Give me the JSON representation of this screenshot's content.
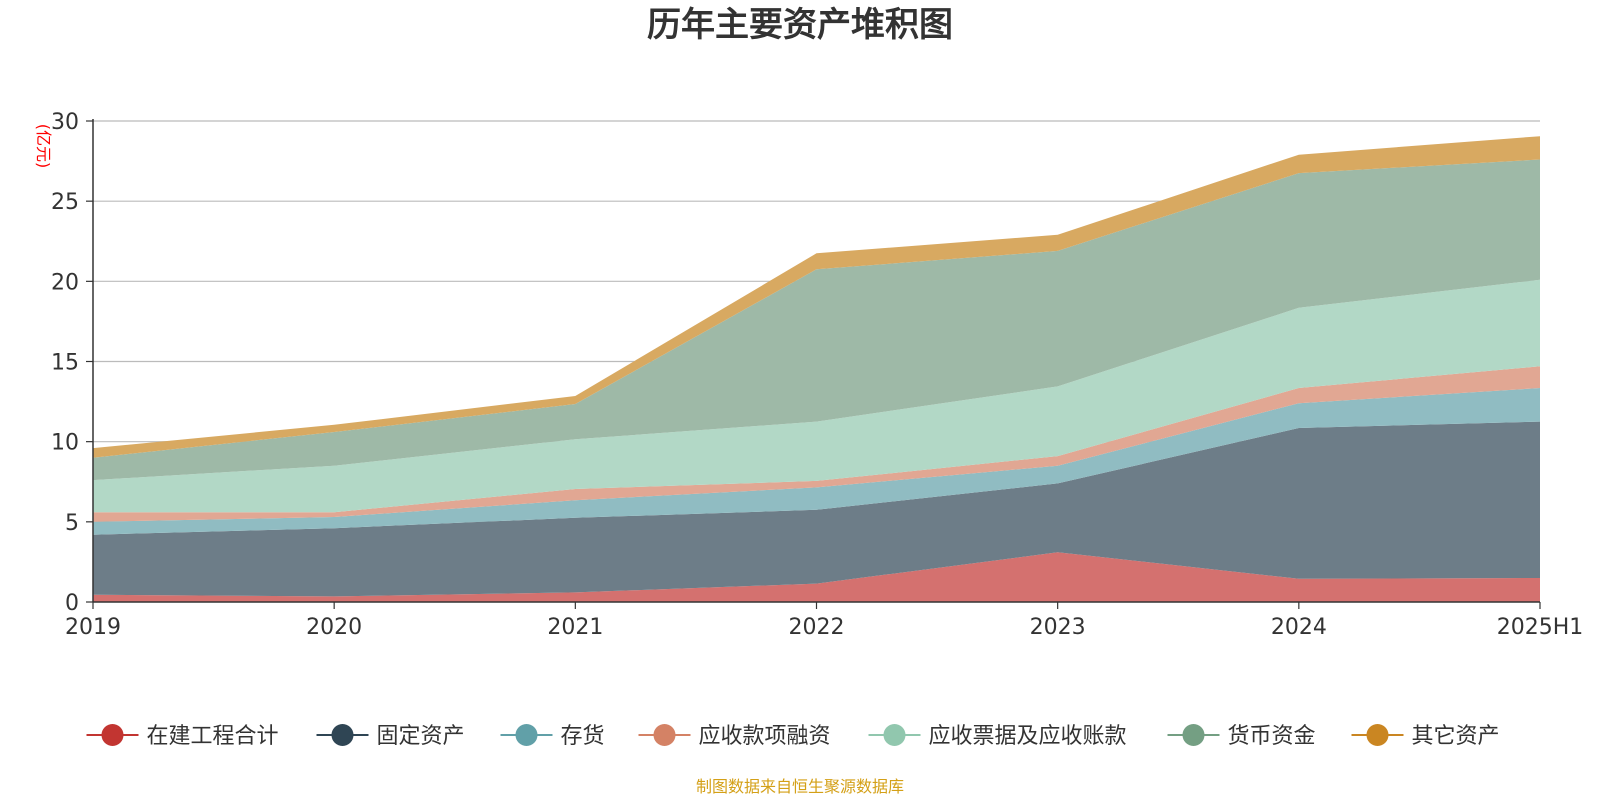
{
  "chart_data": {
    "type": "area",
    "stacked": true,
    "title": "历年主要资产堆积图",
    "yunit": "(亿元)",
    "source": "制图数据来自恒生聚源数据库",
    "categories": [
      "2019",
      "2020",
      "2021",
      "2022",
      "2023",
      "2024",
      "2025H1"
    ],
    "ylim": [
      0,
      30
    ],
    "yticks": [
      0,
      5,
      10,
      15,
      20,
      25,
      30
    ],
    "grid": true,
    "legend_position": "bottom",
    "series": [
      {
        "name": "在建工程合计",
        "color": "#c23531",
        "area_color": "#d4716f",
        "values": [
          0.45,
          0.35,
          0.6,
          1.15,
          3.1,
          1.45,
          1.5
        ]
      },
      {
        "name": "固定资产",
        "color": "#2f4554",
        "area_color": "#6d7d88",
        "values": [
          3.75,
          4.25,
          4.65,
          4.6,
          4.3,
          9.4,
          9.75
        ]
      },
      {
        "name": "存货",
        "color": "#61a0a8",
        "area_color": "#90bcc2",
        "values": [
          0.8,
          0.7,
          1.1,
          1.4,
          1.1,
          1.55,
          2.1
        ]
      },
      {
        "name": "应收款项融资",
        "color": "#d48265",
        "area_color": "#e1a793",
        "values": [
          0.6,
          0.3,
          0.7,
          0.4,
          0.6,
          0.95,
          1.35
        ]
      },
      {
        "name": "应收票据及应收账款",
        "color": "#91c7ae",
        "area_color": "#b2d8c6",
        "values": [
          2.0,
          2.9,
          3.1,
          3.7,
          4.35,
          5.0,
          5.4
        ]
      },
      {
        "name": "货币资金",
        "color": "#749f83",
        "area_color": "#9eb9a7",
        "values": [
          1.4,
          2.1,
          2.2,
          9.5,
          8.45,
          8.4,
          7.5
        ]
      },
      {
        "name": "其它资产",
        "color": "#ca8622",
        "area_color": "#d8a961",
        "values": [
          0.6,
          0.45,
          0.5,
          1.0,
          1.0,
          1.15,
          1.45
        ]
      }
    ]
  }
}
